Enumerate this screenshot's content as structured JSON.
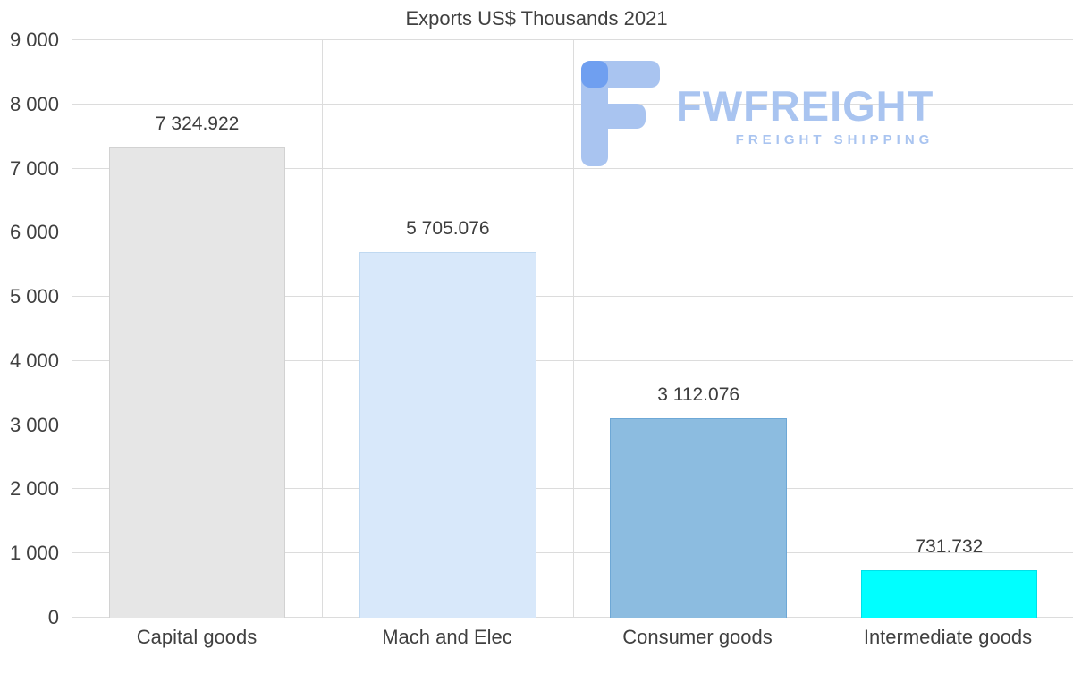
{
  "title": "Exports US$ Thousands 2021",
  "watermark": {
    "brand": "FWFREIGHT",
    "tagline": "FREIGHT SHIPPING",
    "text_color": "#a9c4f0",
    "icon_color": "#a9c4f0",
    "icon_accent": "#6f9ff0"
  },
  "chart_data": {
    "type": "bar",
    "title": "Exports US$ Thousands 2021",
    "categories": [
      "Capital goods",
      "Mach and Elec",
      "Consumer goods",
      "Intermediate goods"
    ],
    "values": [
      7324.922,
      5705.076,
      3112.076,
      731.732
    ],
    "value_labels": [
      "7 324.922",
      "5 705.076",
      "3 112.076",
      "731.732"
    ],
    "bar_colors": [
      "#e6e6e6",
      "#d8e8fa",
      "#8cbce0",
      "#00ffff"
    ],
    "bar_border_colors": [
      "#d2d2d2",
      "#c0d9f1",
      "#6ea8d6",
      "#00e0e8"
    ],
    "xlabel": "",
    "ylabel": "",
    "ylim": [
      0,
      9000
    ],
    "ytick_step": 1000,
    "ytick_labels": [
      "0",
      "1 000",
      "2 000",
      "3 000",
      "4 000",
      "5 000",
      "6 000",
      "7 000",
      "8 000",
      "9 000"
    ],
    "grid": true,
    "legend": false
  }
}
